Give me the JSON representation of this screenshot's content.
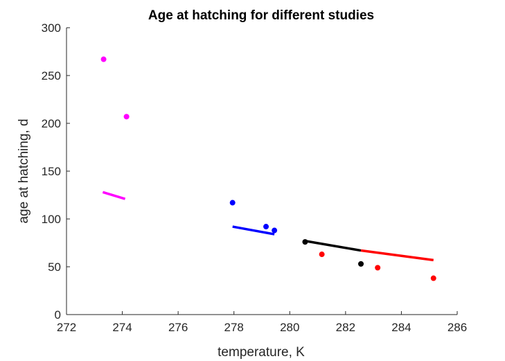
{
  "chart_data": {
    "type": "scatter",
    "title": "Age at hatching for different studies",
    "xlabel": "temperature, K",
    "ylabel": "age at hatching, d",
    "xlim": [
      272,
      286
    ],
    "ylim": [
      0,
      300
    ],
    "xticks": [
      272,
      274,
      276,
      278,
      280,
      282,
      284,
      286
    ],
    "yticks": [
      0,
      50,
      100,
      150,
      200,
      250,
      300
    ],
    "grid": false,
    "legend": "none",
    "series": [
      {
        "color": "#ff00ff",
        "points": [
          {
            "x": 273.33,
            "y": 267
          },
          {
            "x": 274.15,
            "y": 207
          }
        ],
        "line": [
          {
            "x": 273.3,
            "y": 128
          },
          {
            "x": 274.1,
            "y": 121
          }
        ]
      },
      {
        "color": "#0000ff",
        "points": [
          {
            "x": 277.95,
            "y": 117
          },
          {
            "x": 279.15,
            "y": 92
          },
          {
            "x": 279.45,
            "y": 88
          }
        ],
        "line": [
          {
            "x": 277.95,
            "y": 92
          },
          {
            "x": 279.45,
            "y": 84
          }
        ]
      },
      {
        "color": "#000000",
        "points": [
          {
            "x": 280.55,
            "y": 76
          },
          {
            "x": 282.55,
            "y": 53
          }
        ],
        "line": [
          {
            "x": 280.55,
            "y": 77
          },
          {
            "x": 282.55,
            "y": 67
          }
        ]
      },
      {
        "color": "#ff0000",
        "points": [
          {
            "x": 281.15,
            "y": 63
          },
          {
            "x": 283.15,
            "y": 49
          },
          {
            "x": 285.15,
            "y": 38
          }
        ],
        "line": [
          {
            "x": 282.55,
            "y": 67
          },
          {
            "x": 285.15,
            "y": 57
          }
        ]
      }
    ]
  }
}
